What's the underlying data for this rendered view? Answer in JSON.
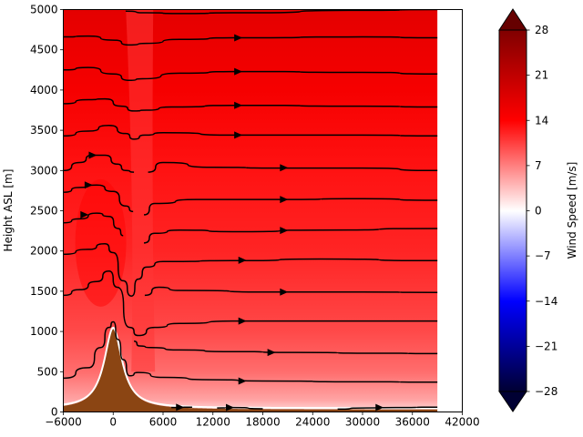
{
  "chart_data": {
    "type": "heatmap",
    "subtype": "filled-contour-with-streamlines",
    "title": "",
    "xlabel": "",
    "ylabel": "Height ASL [m]",
    "xlim": [
      -6000,
      42000
    ],
    "ylim": [
      0,
      5000
    ],
    "data_x_extent": [
      -6000,
      39000
    ],
    "x_ticks": [
      -6000,
      0,
      6000,
      12000,
      18000,
      24000,
      30000,
      36000,
      42000
    ],
    "y_ticks": [
      0,
      500,
      1000,
      1500,
      2000,
      2500,
      3000,
      3500,
      4000,
      4500,
      5000
    ],
    "colorbar": {
      "label": "Wind Speed [m/s]",
      "range": [
        -28,
        28
      ],
      "extend": "both",
      "colormap": "seismic",
      "ticks": [
        -28,
        -21,
        -14,
        -7,
        0,
        7,
        14,
        21,
        28
      ]
    },
    "terrain": {
      "color": "#8b4513",
      "peak_x": 0,
      "peak_height": 1000,
      "half_width": 1300
    },
    "wind_speed_field": {
      "surface_speed": 2,
      "speed_at_1000m": 10,
      "speed_at_3000m": 13,
      "speed_at_5000m": 17,
      "lee_minimum_x": 3500,
      "lee_minimum_speed": 11
    },
    "streamlines": [
      {
        "points": [
          [
            -6000,
            420
          ],
          [
            -3000,
            550
          ],
          [
            -1500,
            800
          ],
          [
            -500,
            1050
          ],
          [
            0,
            1120
          ],
          [
            600,
            900
          ],
          [
            1200,
            650
          ],
          [
            2000,
            450
          ],
          [
            3000,
            490
          ],
          [
            6000,
            430
          ],
          [
            12000,
            400
          ],
          [
            18000,
            385
          ],
          [
            30000,
            375
          ],
          [
            39000,
            370
          ]
        ]
      },
      {
        "points": [
          [
            2500,
            880
          ],
          [
            3200,
            820
          ],
          [
            4500,
            800
          ],
          [
            8000,
            770
          ],
          [
            14000,
            750
          ],
          [
            22000,
            740
          ],
          [
            32000,
            730
          ],
          [
            39000,
            725
          ]
        ]
      },
      {
        "points": [
          [
            -6000,
            1450
          ],
          [
            -4000,
            1520
          ],
          [
            -2000,
            1620
          ],
          [
            -500,
            1750
          ],
          [
            500,
            1550
          ],
          [
            2000,
            1050
          ],
          [
            3000,
            950
          ],
          [
            5000,
            1050
          ],
          [
            8000,
            1100
          ],
          [
            15000,
            1130
          ],
          [
            30000,
            1130
          ],
          [
            39000,
            1130
          ]
        ]
      },
      {
        "points": [
          [
            3800,
            1450
          ],
          [
            5500,
            1550
          ],
          [
            8000,
            1510
          ],
          [
            20000,
            1490
          ],
          [
            30000,
            1490
          ],
          [
            39000,
            1485
          ]
        ]
      },
      {
        "points": [
          [
            -6000,
            1960
          ],
          [
            -3000,
            2020
          ],
          [
            -1000,
            2090
          ],
          [
            0,
            1980
          ],
          [
            1200,
            1630
          ],
          [
            2200,
            1440
          ],
          [
            3000,
            1650
          ],
          [
            4000,
            1800
          ],
          [
            6000,
            1870
          ],
          [
            15000,
            1880
          ],
          [
            25000,
            1900
          ],
          [
            39000,
            1880
          ]
        ]
      },
      {
        "points": [
          [
            -6000,
            2350
          ],
          [
            -4000,
            2400
          ],
          [
            -2000,
            2470
          ],
          [
            -500,
            2430
          ],
          [
            600,
            2280
          ],
          [
            1200,
            2190
          ]
        ]
      },
      {
        "points": [
          [
            3700,
            2100
          ],
          [
            5000,
            2220
          ],
          [
            8000,
            2260
          ],
          [
            15000,
            2240
          ],
          [
            25000,
            2260
          ],
          [
            39000,
            2280
          ]
        ]
      },
      {
        "points": [
          [
            -6000,
            2730
          ],
          [
            -4000,
            2790
          ],
          [
            -2000,
            2820
          ],
          [
            0,
            2740
          ],
          [
            1500,
            2560
          ],
          [
            2400,
            2490
          ]
        ]
      },
      {
        "points": [
          [
            3700,
            2450
          ],
          [
            5000,
            2590
          ],
          [
            10000,
            2640
          ],
          [
            20000,
            2640
          ],
          [
            30000,
            2650
          ],
          [
            39000,
            2630
          ]
        ]
      },
      {
        "points": [
          [
            -6000,
            3000
          ],
          [
            -4000,
            3100
          ],
          [
            -2500,
            3190
          ],
          [
            -1000,
            3190
          ],
          [
            500,
            3080
          ],
          [
            1500,
            3000
          ],
          [
            2500,
            2980
          ]
        ]
      },
      {
        "points": [
          [
            4200,
            2980
          ],
          [
            6000,
            3100
          ],
          [
            12000,
            3040
          ],
          [
            20000,
            3030
          ],
          [
            30000,
            3030
          ],
          [
            39000,
            3000
          ]
        ]
      },
      {
        "points": [
          [
            -6000,
            3430
          ],
          [
            -3000,
            3490
          ],
          [
            -500,
            3560
          ],
          [
            1500,
            3460
          ],
          [
            2500,
            3390
          ],
          [
            3800,
            3440
          ],
          [
            6000,
            3470
          ],
          [
            15000,
            3440
          ],
          [
            30000,
            3440
          ],
          [
            39000,
            3430
          ]
        ]
      },
      {
        "points": [
          [
            -6000,
            3830
          ],
          [
            -3000,
            3880
          ],
          [
            -1000,
            3890
          ],
          [
            1000,
            3800
          ],
          [
            2500,
            3740
          ],
          [
            4000,
            3750
          ],
          [
            7000,
            3790
          ],
          [
            15000,
            3810
          ],
          [
            30000,
            3800
          ],
          [
            39000,
            3790
          ]
        ]
      },
      {
        "points": [
          [
            -6000,
            4250
          ],
          [
            -3000,
            4280
          ],
          [
            0,
            4200
          ],
          [
            2000,
            4120
          ],
          [
            3500,
            4140
          ],
          [
            8000,
            4210
          ],
          [
            15000,
            4230
          ],
          [
            30000,
            4220
          ],
          [
            39000,
            4200
          ]
        ]
      },
      {
        "points": [
          [
            -6000,
            4660
          ],
          [
            -3000,
            4670
          ],
          [
            0,
            4620
          ],
          [
            2000,
            4560
          ],
          [
            4000,
            4580
          ],
          [
            8000,
            4630
          ],
          [
            15000,
            4650
          ],
          [
            30000,
            4660
          ],
          [
            39000,
            4650
          ]
        ]
      },
      {
        "points": [
          [
            1500,
            4980
          ],
          [
            4000,
            4960
          ],
          [
            8000,
            4950
          ],
          [
            15000,
            4960
          ],
          [
            30000,
            4990
          ],
          [
            39000,
            5000
          ]
        ]
      },
      {
        "points": [
          [
            7000,
            55
          ],
          [
            9500,
            60
          ]
        ]
      },
      {
        "points": [
          [
            12500,
            50
          ],
          [
            14500,
            55
          ],
          [
            18000,
            40
          ]
        ]
      },
      {
        "points": [
          [
            27000,
            35
          ],
          [
            30000,
            50
          ],
          [
            34000,
            55
          ],
          [
            39000,
            60
          ]
        ]
      }
    ],
    "arrows": [
      {
        "x": -2500,
        "y": 3190
      },
      {
        "x": -3000,
        "y": 2820
      },
      {
        "x": -3500,
        "y": 2450
      },
      {
        "x": 15000,
        "y": 4650
      },
      {
        "x": 15000,
        "y": 4230
      },
      {
        "x": 15000,
        "y": 3810
      },
      {
        "x": 15000,
        "y": 3440
      },
      {
        "x": 20500,
        "y": 3035
      },
      {
        "x": 20500,
        "y": 2640
      },
      {
        "x": 20500,
        "y": 2255
      },
      {
        "x": 15500,
        "y": 1885
      },
      {
        "x": 20500,
        "y": 1490
      },
      {
        "x": 15500,
        "y": 1130
      },
      {
        "x": 19000,
        "y": 740
      },
      {
        "x": 15500,
        "y": 385
      },
      {
        "x": 8000,
        "y": 58
      },
      {
        "x": 14000,
        "y": 55
      },
      {
        "x": 32000,
        "y": 55
      }
    ]
  }
}
